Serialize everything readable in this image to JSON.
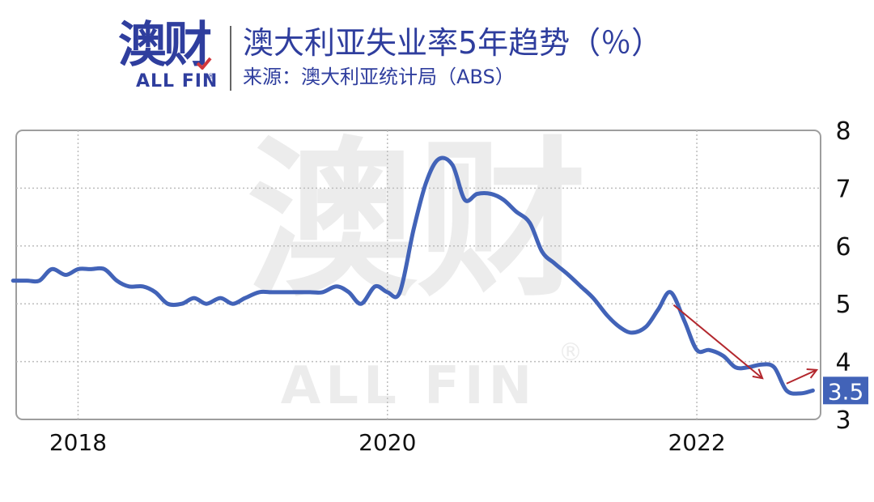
{
  "header": {
    "logo_text": "澳财",
    "logo_sub": "ALL FIN",
    "logo_reg": "®",
    "title": "澳大利亚失业率5年趋势（％）",
    "source": "来源：澳大利亚统计局（ABS）"
  },
  "colors": {
    "brand": "#2f3e9e",
    "line": "#4263b8",
    "arrow": "#b3282e",
    "grid": "#bdbdbd",
    "last_value_badge": "#4263b8"
  },
  "chart_data": {
    "type": "line",
    "title": "澳大利亚失业率5年趋势（％）",
    "subtitle": "来源：澳大利亚统计局（ABS）",
    "xlabel": "",
    "ylabel": "",
    "y_axis_side": "right",
    "ylim": [
      3,
      8
    ],
    "yticks": [
      "8",
      "7",
      "6",
      "5",
      "4",
      "3"
    ],
    "xlim": [
      2017.6,
      2022.8
    ],
    "xticks": [
      {
        "value": 2018.0,
        "label": "2018"
      },
      {
        "value": 2020.0,
        "label": "2020"
      },
      {
        "value": 2022.0,
        "label": "2022"
      }
    ],
    "grid": true,
    "last_value_label": "3.5",
    "series": [
      {
        "name": "",
        "x": [
          2017.58,
          2017.67,
          2017.75,
          2017.83,
          2017.92,
          2018.0,
          2018.08,
          2018.17,
          2018.25,
          2018.33,
          2018.42,
          2018.5,
          2018.58,
          2018.67,
          2018.75,
          2018.83,
          2018.92,
          2019.0,
          2019.08,
          2019.17,
          2019.25,
          2019.33,
          2019.42,
          2019.5,
          2019.58,
          2019.67,
          2019.75,
          2019.83,
          2019.92,
          2020.0,
          2020.08,
          2020.17,
          2020.25,
          2020.33,
          2020.42,
          2020.5,
          2020.58,
          2020.67,
          2020.75,
          2020.83,
          2020.92,
          2021.0,
          2021.08,
          2021.17,
          2021.25,
          2021.33,
          2021.42,
          2021.5,
          2021.58,
          2021.67,
          2021.75,
          2021.83,
          2021.92,
          2022.0,
          2022.08,
          2022.17,
          2022.25,
          2022.33,
          2022.42,
          2022.5,
          2022.58,
          2022.67,
          2022.75
        ],
        "values": [
          5.4,
          5.4,
          5.4,
          5.6,
          5.5,
          5.6,
          5.6,
          5.6,
          5.4,
          5.3,
          5.3,
          5.2,
          5.0,
          5.0,
          5.1,
          5.0,
          5.1,
          5.0,
          5.1,
          5.2,
          5.2,
          5.2,
          5.2,
          5.2,
          5.2,
          5.3,
          5.2,
          5.0,
          5.3,
          5.2,
          5.2,
          6.3,
          7.1,
          7.5,
          7.4,
          6.8,
          6.9,
          6.9,
          6.8,
          6.6,
          6.4,
          5.9,
          5.7,
          5.5,
          5.3,
          5.1,
          4.8,
          4.6,
          4.5,
          4.6,
          4.9,
          5.2,
          4.7,
          4.2,
          4.2,
          4.1,
          3.9,
          3.9,
          3.95,
          3.9,
          3.5,
          3.45,
          3.5
        ]
      }
    ],
    "annotations": [
      {
        "type": "arrow",
        "from": [
          2021.85,
          4.98
        ],
        "to": [
          2022.42,
          3.72
        ]
      },
      {
        "type": "arrow",
        "from": [
          2022.58,
          3.62
        ],
        "to": [
          2022.77,
          3.85
        ]
      }
    ],
    "watermark": {
      "main": "澳财",
      "sub": "ALL FIN",
      "reg": "®"
    }
  }
}
